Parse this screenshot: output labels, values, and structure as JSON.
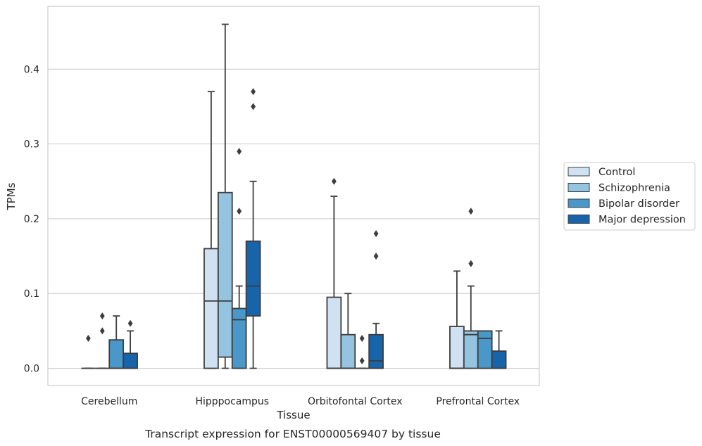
{
  "chart_data": {
    "type": "box",
    "title": "",
    "caption": "Transcript expression for ENST00000569407 by tissue",
    "xlabel": "Tissue",
    "ylabel": "TPMs",
    "ylim": [
      -0.023,
      0.484
    ],
    "yticks": [
      0.0,
      0.1,
      0.2,
      0.3,
      0.4
    ],
    "ytick_labels": [
      "0.0",
      "0.1",
      "0.2",
      "0.3",
      "0.4"
    ],
    "grid": "horizontal",
    "legend_position": "right-center",
    "categories": [
      "Cerebellum",
      "Hipppocampus",
      "Orbitofontal Cortex",
      "Prefrontal Cortex"
    ],
    "series": [
      {
        "name": "Control",
        "color": "#d0e1f2",
        "boxes": [
          {
            "whislo": 0,
            "q1": 0,
            "med": 0,
            "q3": 0,
            "whishi": 0,
            "fliers": [
              0.04
            ]
          },
          {
            "whislo": 0,
            "q1": 0,
            "med": 0.09,
            "q3": 0.16,
            "whishi": 0.37,
            "fliers": []
          },
          {
            "whislo": 0,
            "q1": 0,
            "med": 0,
            "q3": 0.095,
            "whishi": 0.23,
            "fliers": [
              0.25
            ]
          },
          {
            "whislo": 0,
            "q1": 0,
            "med": 0,
            "q3": 0.056,
            "whishi": 0.13,
            "fliers": []
          }
        ]
      },
      {
        "name": "Schizophrenia",
        "color": "#94c4df",
        "boxes": [
          {
            "whislo": 0,
            "q1": 0,
            "med": 0,
            "q3": 0,
            "whishi": 0,
            "fliers": [
              0.05,
              0.07
            ]
          },
          {
            "whislo": 0,
            "q1": 0.015,
            "med": 0.09,
            "q3": 0.235,
            "whishi": 0.46,
            "fliers": []
          },
          {
            "whislo": 0,
            "q1": 0,
            "med": 0,
            "q3": 0.045,
            "whishi": 0.1,
            "fliers": []
          },
          {
            "whislo": 0,
            "q1": 0,
            "med": 0.045,
            "q3": 0.05,
            "whishi": 0.11,
            "fliers": [
              0.14,
              0.21
            ]
          }
        ]
      },
      {
        "name": "Bipolar disorder",
        "color": "#4a98c9",
        "boxes": [
          {
            "whislo": 0,
            "q1": 0,
            "med": 0,
            "q3": 0.038,
            "whishi": 0.07,
            "fliers": []
          },
          {
            "whislo": 0,
            "q1": 0,
            "med": 0.065,
            "q3": 0.08,
            "whishi": 0.11,
            "fliers": [
              0.21,
              0.29
            ]
          },
          {
            "whislo": 0,
            "q1": 0,
            "med": 0,
            "q3": 0,
            "whishi": 0,
            "fliers": [
              0.01,
              0.04
            ]
          },
          {
            "whislo": 0,
            "q1": 0,
            "med": 0.04,
            "q3": 0.05,
            "whishi": 0.05,
            "fliers": []
          }
        ]
      },
      {
        "name": "Major depression",
        "color": "#1764ab",
        "boxes": [
          {
            "whislo": 0,
            "q1": 0,
            "med": 0,
            "q3": 0.02,
            "whishi": 0.05,
            "fliers": [
              0.06
            ]
          },
          {
            "whislo": 0,
            "q1": 0.07,
            "med": 0.11,
            "q3": 0.17,
            "whishi": 0.25,
            "fliers": [
              0.35,
              0.37
            ]
          },
          {
            "whislo": 0,
            "q1": 0,
            "med": 0.01,
            "q3": 0.045,
            "whishi": 0.06,
            "fliers": [
              0.15,
              0.18
            ]
          },
          {
            "whislo": 0,
            "q1": 0,
            "med": 0,
            "q3": 0.023,
            "whishi": 0.05,
            "fliers": []
          }
        ]
      }
    ]
  }
}
